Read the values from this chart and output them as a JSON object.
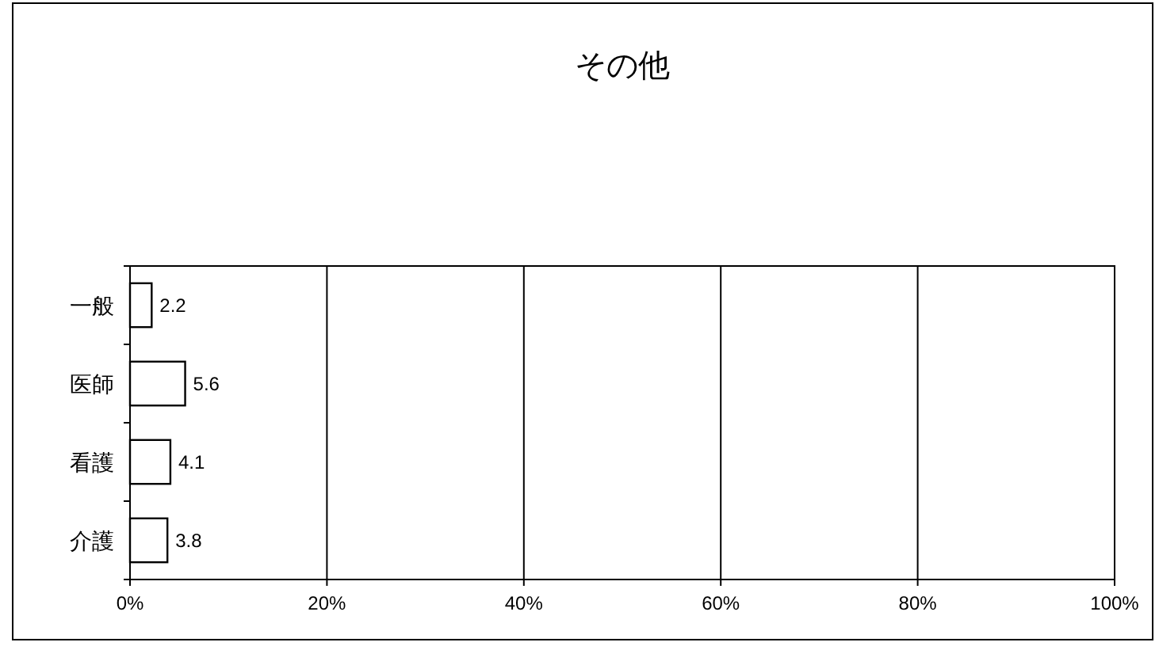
{
  "chart_data": {
    "type": "bar",
    "orientation": "horizontal",
    "title": "その他",
    "categories": [
      "一般",
      "医師",
      "看護",
      "介護"
    ],
    "values": [
      2.2,
      5.6,
      4.1,
      3.8
    ],
    "color": "#ffffff",
    "data_labels": true,
    "grid": "x",
    "xlim": [
      0,
      100
    ],
    "xticks": [
      {
        "value": 0,
        "label": "0%"
      },
      {
        "value": 20,
        "label": "20%"
      },
      {
        "value": 40,
        "label": "40%"
      },
      {
        "value": 60,
        "label": "60%"
      },
      {
        "value": 80,
        "label": "80%"
      },
      {
        "value": 100,
        "label": "100%"
      }
    ]
  }
}
